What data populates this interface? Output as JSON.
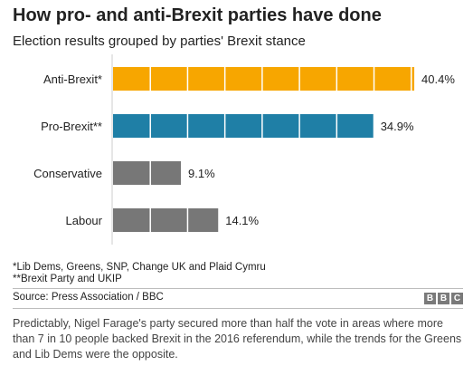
{
  "title": "How pro- and anti-Brexit parties have done",
  "subtitle": "Election results grouped by parties' Brexit stance",
  "chart_data": {
    "type": "bar",
    "orientation": "horizontal",
    "categories": [
      "Anti-Brexit*",
      "Pro-Brexit**",
      "Conservative",
      "Labour"
    ],
    "values": [
      40.4,
      34.9,
      9.1,
      14.1
    ],
    "value_labels": [
      "40.4%",
      "34.9%",
      "9.1%",
      "14.1%"
    ],
    "colors": [
      "#f7a600",
      "#1f7fa6",
      "#777777",
      "#777777"
    ],
    "unit": "%",
    "xlim": [
      0,
      41
    ],
    "segment_step": 5,
    "grid": false,
    "legend": "none"
  },
  "footnotes": [
    "*Lib Dems, Greens, SNP, Change UK and Plaid Cymru",
    "**Brexit Party and UKIP"
  ],
  "source": "Source: Press Association / BBC",
  "logo": [
    "B",
    "B",
    "C"
  ],
  "caption": "Predictably, Nigel Farage's party secured more than half the vote in areas where more than 7 in 10 people backed Brexit in the 2016 referendum, while the trends for the Greens and Lib Dems were the opposite."
}
